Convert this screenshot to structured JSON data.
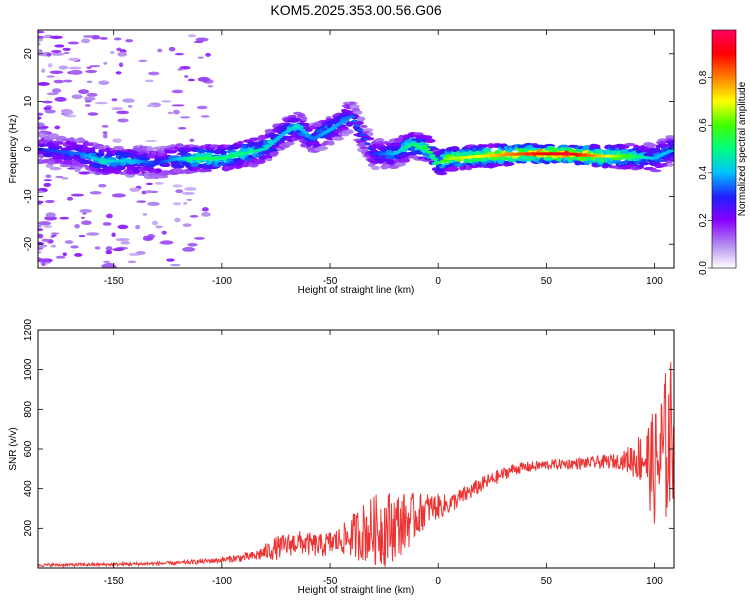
{
  "title": "KOM5.2025.353.00.56.G06",
  "chart_data": [
    {
      "type": "heatmap",
      "xlabel": "Height of straight line (km)",
      "ylabel": "Frequency (Hz)",
      "xlim": [
        -185,
        109
      ],
      "ylim": [
        -25,
        25
      ],
      "xticks": [
        -150,
        -100,
        -50,
        0,
        50,
        100
      ],
      "yticks": [
        -20,
        -10,
        0,
        10,
        20
      ],
      "colorbar": {
        "label": "Normalized spectral amplitude",
        "range": [
          0,
          1
        ],
        "ticks": [
          0.0,
          0.2,
          0.4,
          0.6,
          0.8
        ],
        "colormap": [
          "#ffffff",
          "#b088f0",
          "#8800ff",
          "#2020ff",
          "#00c0ff",
          "#00ff80",
          "#40ff00",
          "#ffff00",
          "#ff8000",
          "#ff0000",
          "#ff0060"
        ]
      },
      "ridge": [
        {
          "x": -185,
          "y": 0.0,
          "a": 0.3
        },
        {
          "x": -165,
          "y": -1.0,
          "a": 0.35
        },
        {
          "x": -155,
          "y": -2.5,
          "a": 0.45
        },
        {
          "x": -140,
          "y": -2.5,
          "a": 0.4
        },
        {
          "x": -130,
          "y": -3.0,
          "a": 0.3
        },
        {
          "x": -120,
          "y": -2.0,
          "a": 0.4
        },
        {
          "x": -110,
          "y": -2.0,
          "a": 0.55
        },
        {
          "x": -100,
          "y": -2.0,
          "a": 0.5
        },
        {
          "x": -90,
          "y": -1.0,
          "a": 0.5
        },
        {
          "x": -80,
          "y": 0.0,
          "a": 0.45
        },
        {
          "x": -72,
          "y": 3.0,
          "a": 0.4
        },
        {
          "x": -65,
          "y": 5.0,
          "a": 0.45
        },
        {
          "x": -58,
          "y": 2.0,
          "a": 0.35
        },
        {
          "x": -50,
          "y": 4.0,
          "a": 0.4
        },
        {
          "x": -40,
          "y": 7.0,
          "a": 0.35
        },
        {
          "x": -30,
          "y": -1.0,
          "a": 0.3
        },
        {
          "x": -20,
          "y": -1.0,
          "a": 0.4
        },
        {
          "x": -12,
          "y": 1.0,
          "a": 0.5
        },
        {
          "x": -5,
          "y": 0.0,
          "a": 0.55
        },
        {
          "x": 0,
          "y": -3.0,
          "a": 0.5
        },
        {
          "x": 5,
          "y": -2.0,
          "a": 0.65
        },
        {
          "x": 20,
          "y": -1.5,
          "a": 0.7
        },
        {
          "x": 40,
          "y": -1.0,
          "a": 0.85
        },
        {
          "x": 60,
          "y": -1.0,
          "a": 0.95
        },
        {
          "x": 75,
          "y": -1.5,
          "a": 0.75
        },
        {
          "x": 90,
          "y": -1.5,
          "a": 0.55
        },
        {
          "x": 100,
          "y": -2.0,
          "a": 0.4
        },
        {
          "x": 109,
          "y": 0.0,
          "a": 0.4
        }
      ]
    },
    {
      "type": "line",
      "xlabel": "Height of straight line (km)",
      "ylabel": "SNR (v/v)",
      "xlim": [
        -185,
        109
      ],
      "ylim": [
        0,
        1200
      ],
      "xticks": [
        -150,
        -100,
        -50,
        0,
        50,
        100
      ],
      "yticks": [
        200,
        400,
        600,
        800,
        1000,
        1200
      ],
      "color": "#ee3333",
      "envelope": [
        {
          "x": -185,
          "y": 15,
          "noise": 8
        },
        {
          "x": -150,
          "y": 18,
          "noise": 8
        },
        {
          "x": -120,
          "y": 25,
          "noise": 10
        },
        {
          "x": -100,
          "y": 40,
          "noise": 15
        },
        {
          "x": -85,
          "y": 60,
          "noise": 25
        },
        {
          "x": -75,
          "y": 100,
          "noise": 60
        },
        {
          "x": -65,
          "y": 130,
          "noise": 60
        },
        {
          "x": -55,
          "y": 110,
          "noise": 60
        },
        {
          "x": -45,
          "y": 140,
          "noise": 70
        },
        {
          "x": -35,
          "y": 180,
          "noise": 150
        },
        {
          "x": -25,
          "y": 200,
          "noise": 200
        },
        {
          "x": -15,
          "y": 230,
          "noise": 150
        },
        {
          "x": -5,
          "y": 300,
          "noise": 80
        },
        {
          "x": 5,
          "y": 320,
          "noise": 50
        },
        {
          "x": 20,
          "y": 420,
          "noise": 40
        },
        {
          "x": 35,
          "y": 500,
          "noise": 30
        },
        {
          "x": 50,
          "y": 520,
          "noise": 25
        },
        {
          "x": 70,
          "y": 530,
          "noise": 30
        },
        {
          "x": 85,
          "y": 540,
          "noise": 40
        },
        {
          "x": 95,
          "y": 560,
          "noise": 150
        },
        {
          "x": 100,
          "y": 500,
          "noise": 300
        },
        {
          "x": 105,
          "y": 600,
          "noise": 400
        },
        {
          "x": 109,
          "y": 700,
          "noise": 400
        }
      ]
    }
  ]
}
